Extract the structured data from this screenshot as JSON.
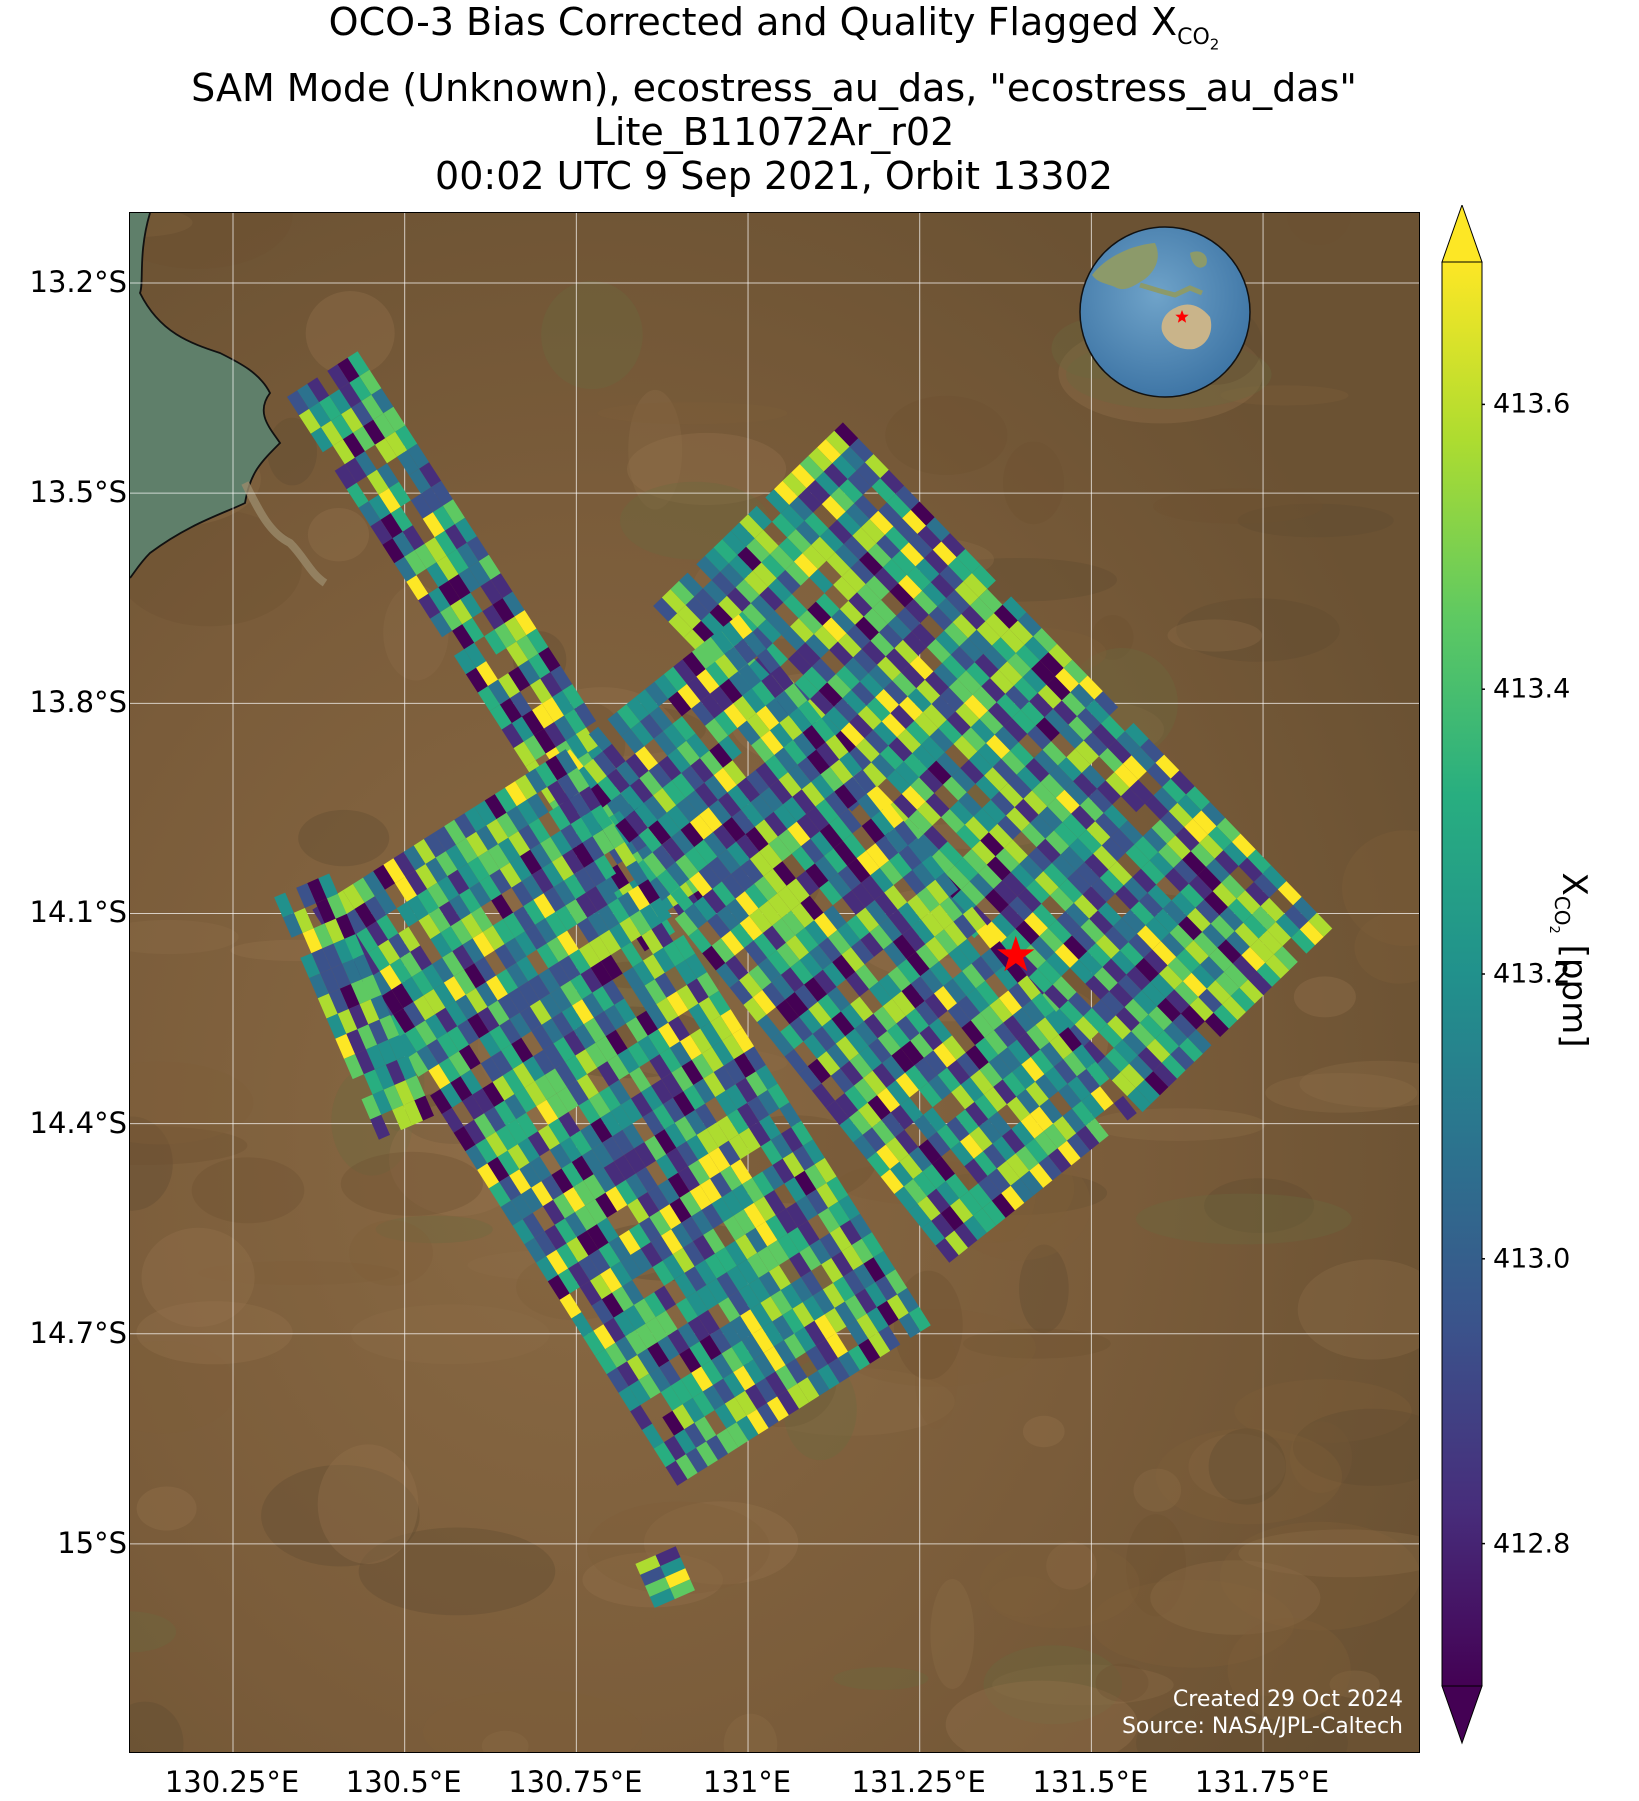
{
  "title": {
    "line1_prefix": "OCO-3 Bias Corrected and Quality Flagged X",
    "line1_sub": "CO",
    "line1_subsub": "2",
    "line2": "SAM Mode (Unknown), ecostress_au_das, \"ecostress_au_das\"",
    "line3": "Lite_B11072Ar_r02",
    "line4": "00:02 UTC 9 Sep 2021, Orbit 13302"
  },
  "map": {
    "lat_range": [
      -15.3,
      -13.1
    ],
    "lon_range": [
      130.1,
      131.98
    ],
    "lat_ticks": [
      {
        "value": -13.2,
        "label": "13.2°S"
      },
      {
        "value": -13.5,
        "label": "13.5°S"
      },
      {
        "value": -13.8,
        "label": "13.8°S"
      },
      {
        "value": -14.1,
        "label": "14.1°S"
      },
      {
        "value": -14.4,
        "label": "14.4°S"
      },
      {
        "value": -14.7,
        "label": "14.7°S"
      },
      {
        "value": -15.0,
        "label": "15°S"
      }
    ],
    "lon_ticks": [
      {
        "value": 130.25,
        "label": "130.25°E"
      },
      {
        "value": 130.5,
        "label": "130.5°E"
      },
      {
        "value": 130.75,
        "label": "130.75°E"
      },
      {
        "value": 131.0,
        "label": "131°E"
      },
      {
        "value": 131.25,
        "label": "131.25°E"
      },
      {
        "value": 131.5,
        "label": "131.5°E"
      },
      {
        "value": 131.75,
        "label": "131.75°E"
      }
    ],
    "grid": true,
    "target_site": {
      "lat": -14.16,
      "lon": 131.39,
      "color": "#ff0000",
      "icon": "star-icon"
    },
    "inset_globe": {
      "position": "top-right",
      "icon": "globe-icon",
      "marker_color": "#ff0000"
    },
    "background": "satellite imagery"
  },
  "credits": {
    "created": "Created 29 Oct 2024",
    "source": "Source: NASA/JPL-Caltech"
  },
  "colorbar": {
    "colormap": "viridis",
    "range": [
      412.7,
      413.7
    ],
    "extend": "both",
    "ticks": [
      {
        "value": 412.8,
        "label": "412.8"
      },
      {
        "value": 413.0,
        "label": "413.0"
      },
      {
        "value": 413.2,
        "label": "413.2"
      },
      {
        "value": 413.4,
        "label": "413.4"
      },
      {
        "value": 413.6,
        "label": "413.6"
      }
    ],
    "label_prefix": "X",
    "label_sub": "CO",
    "label_subsub": "2",
    "label_suffix": " [ppm]"
  },
  "chart_data": {
    "type": "heatmap",
    "value_range": [
      412.7,
      413.7
    ],
    "sounding_swaths": [
      {
        "lat_start": -13.33,
        "lon_start": 130.38,
        "lat_end": -14.12,
        "lon_end": 130.9
      },
      {
        "lat_start": -13.53,
        "lon_start": 131.0,
        "lat_end": -14.26,
        "lon_end": 131.72
      },
      {
        "lat_start": -13.78,
        "lon_start": 130.85,
        "lat_end": -14.48,
        "lon_end": 131.42
      },
      {
        "lat_start": -13.98,
        "lon_start": 130.55,
        "lat_end": -14.8,
        "lon_end": 131.08
      },
      {
        "lat_start": -14.06,
        "lon_start": 130.35,
        "lat_end": -14.4,
        "lon_end": 130.5
      },
      {
        "lat_start": -15.06,
        "lon_start": 130.85,
        "lat_end": -15.03,
        "lon_end": 130.92
      }
    ]
  }
}
